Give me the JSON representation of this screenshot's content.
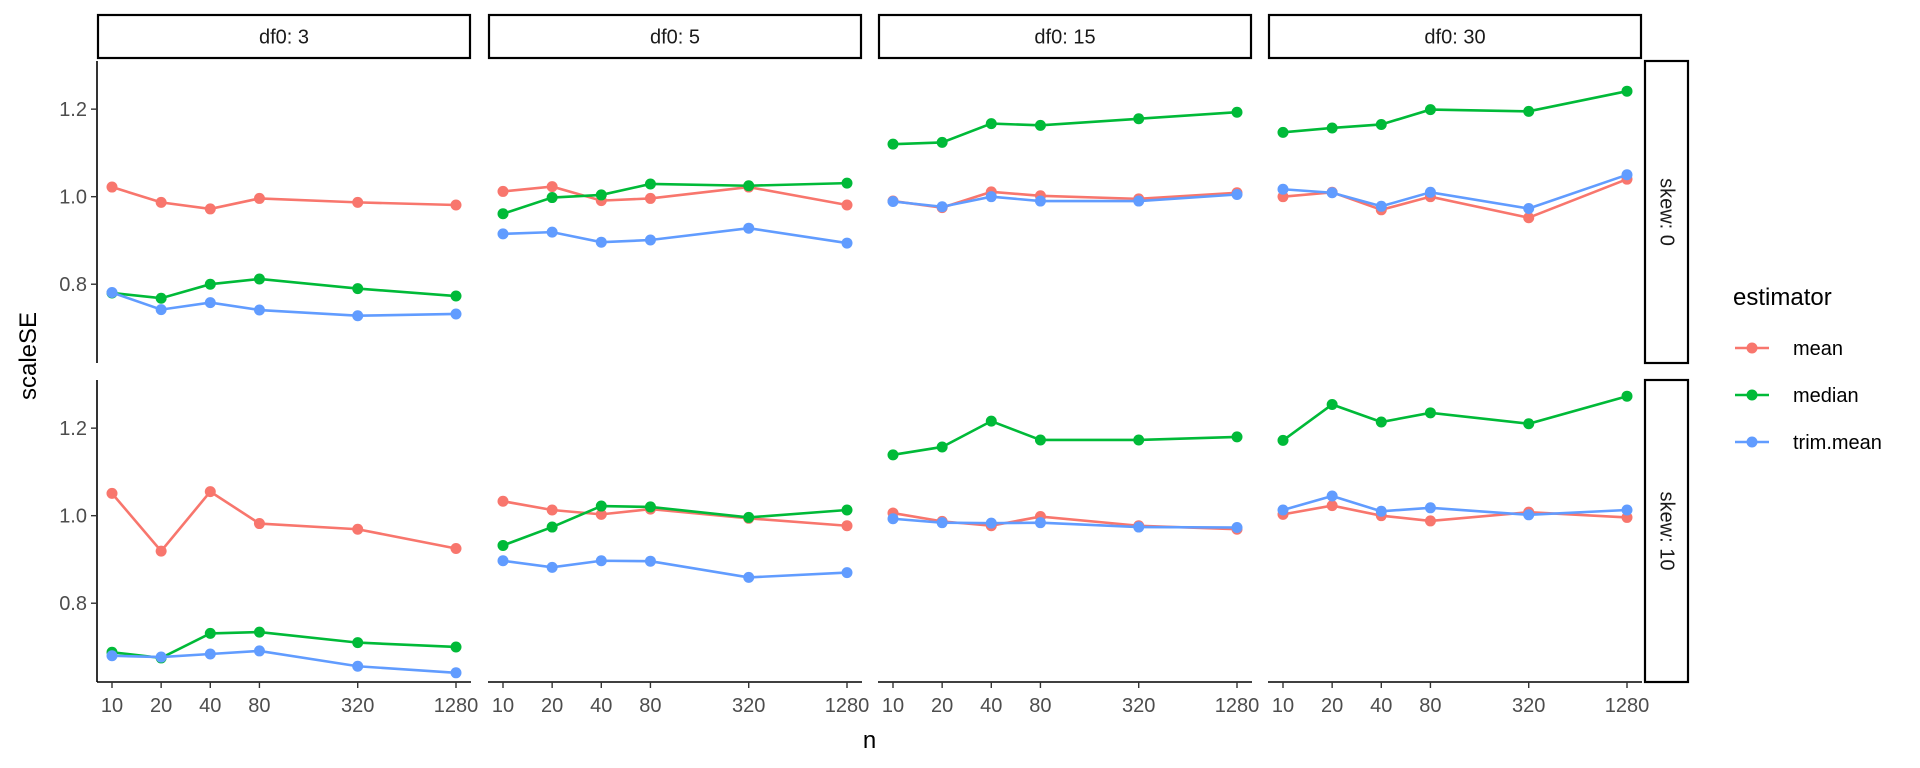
{
  "chart_data": {
    "type": "line",
    "xlabel": "n",
    "ylabel": "scaleSE",
    "x": [
      10,
      20,
      40,
      80,
      320,
      1280
    ],
    "x_ticks": [
      "10",
      "20",
      "40",
      "80",
      "320",
      "1280"
    ],
    "x_scale": "log",
    "y_ticks": [
      "0.8",
      "1.0",
      "1.2"
    ],
    "ylim": [
      0.62,
      1.31
    ],
    "grid": false,
    "legend": {
      "title": "estimator",
      "position": "right",
      "items": [
        "mean",
        "median",
        "trim.mean"
      ]
    },
    "colors": {
      "mean": "#F8766D",
      "median": "#00BA38",
      "trim.mean": "#619CFF"
    },
    "facet_cols": [
      "df0: 3",
      "df0: 5",
      "df0: 15",
      "df0: 30"
    ],
    "facet_rows": [
      "skew: 0",
      "skew: 10"
    ],
    "panels": [
      {
        "row": 0,
        "col": 0,
        "series": [
          {
            "name": "mean",
            "values": [
              1.022,
              0.987,
              0.972,
              0.996,
              0.987,
              0.981
            ]
          },
          {
            "name": "median",
            "values": [
              0.78,
              0.768,
              0.8,
              0.812,
              0.79,
              0.773
            ]
          },
          {
            "name": "trim.mean",
            "values": [
              0.781,
              0.742,
              0.758,
              0.741,
              0.728,
              0.732
            ]
          }
        ]
      },
      {
        "row": 0,
        "col": 1,
        "series": [
          {
            "name": "mean",
            "values": [
              1.012,
              1.023,
              0.991,
              0.996,
              1.022,
              0.981
            ]
          },
          {
            "name": "median",
            "values": [
              0.961,
              0.998,
              1.004,
              1.029,
              1.025,
              1.031
            ]
          },
          {
            "name": "trim.mean",
            "values": [
              0.915,
              0.919,
              0.896,
              0.901,
              0.928,
              0.894
            ]
          }
        ]
      },
      {
        "row": 0,
        "col": 2,
        "series": [
          {
            "name": "mean",
            "values": [
              0.99,
              0.975,
              1.011,
              1.002,
              0.995,
              1.009
            ]
          },
          {
            "name": "median",
            "values": [
              1.12,
              1.124,
              1.167,
              1.163,
              1.178,
              1.193
            ]
          },
          {
            "name": "trim.mean",
            "values": [
              0.989,
              0.977,
              1.0,
              0.99,
              0.99,
              1.005
            ]
          }
        ]
      },
      {
        "row": 0,
        "col": 3,
        "series": [
          {
            "name": "mean",
            "values": [
              1.0,
              1.01,
              0.97,
              1.0,
              0.952,
              1.04
            ]
          },
          {
            "name": "median",
            "values": [
              1.147,
              1.157,
              1.165,
              1.199,
              1.195,
              1.241
            ]
          },
          {
            "name": "trim.mean",
            "values": [
              1.017,
              1.009,
              0.978,
              1.01,
              0.973,
              1.05
            ]
          }
        ]
      },
      {
        "row": 1,
        "col": 0,
        "series": [
          {
            "name": "mean",
            "values": [
              1.051,
              0.919,
              1.055,
              0.982,
              0.969,
              0.925
            ]
          },
          {
            "name": "median",
            "values": [
              0.688,
              0.675,
              0.731,
              0.734,
              0.71,
              0.7
            ]
          },
          {
            "name": "trim.mean",
            "values": [
              0.68,
              0.677,
              0.684,
              0.691,
              0.656,
              0.641
            ]
          }
        ]
      },
      {
        "row": 1,
        "col": 1,
        "series": [
          {
            "name": "mean",
            "values": [
              1.033,
              1.013,
              1.003,
              1.015,
              0.994,
              0.977
            ]
          },
          {
            "name": "median",
            "values": [
              0.932,
              0.974,
              1.022,
              1.02,
              0.996,
              1.013
            ]
          },
          {
            "name": "trim.mean",
            "values": [
              0.897,
              0.882,
              0.897,
              0.896,
              0.859,
              0.87
            ]
          }
        ]
      },
      {
        "row": 1,
        "col": 2,
        "series": [
          {
            "name": "mean",
            "values": [
              1.006,
              0.987,
              0.977,
              0.998,
              0.977,
              0.969
            ]
          },
          {
            "name": "median",
            "values": [
              1.139,
              1.157,
              1.216,
              1.173,
              1.173,
              1.18
            ]
          },
          {
            "name": "trim.mean",
            "values": [
              0.993,
              0.984,
              0.983,
              0.984,
              0.974,
              0.973
            ]
          }
        ]
      },
      {
        "row": 1,
        "col": 3,
        "series": [
          {
            "name": "mean",
            "values": [
              1.003,
              1.023,
              1.0,
              0.988,
              1.008,
              0.996
            ]
          },
          {
            "name": "median",
            "values": [
              1.172,
              1.254,
              1.214,
              1.235,
              1.21,
              1.273
            ]
          },
          {
            "name": "trim.mean",
            "values": [
              1.013,
              1.045,
              1.01,
              1.018,
              1.002,
              1.013
            ]
          }
        ]
      }
    ]
  }
}
